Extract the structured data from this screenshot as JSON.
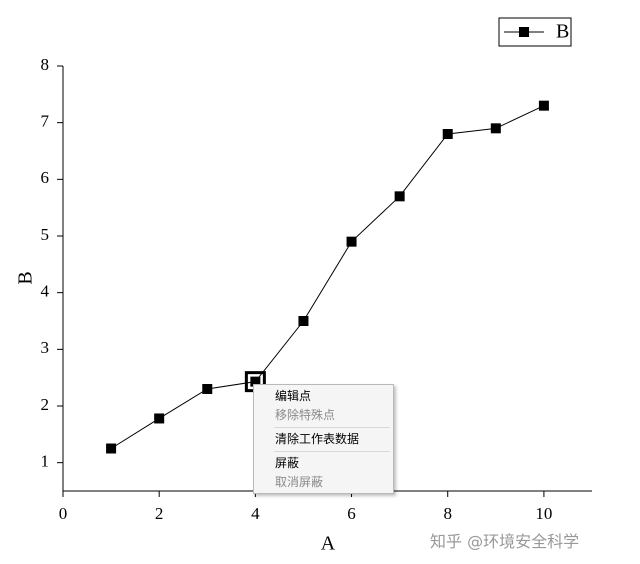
{
  "chart_data": {
    "type": "line",
    "xlabel": "A",
    "ylabel": "B",
    "x": [
      1,
      2,
      3,
      4,
      5,
      6,
      7,
      8,
      9,
      10
    ],
    "series": [
      {
        "name": "B",
        "color": "#000000",
        "values": [
          1.25,
          1.78,
          2.3,
          2.43,
          3.5,
          4.9,
          5.7,
          6.8,
          6.9,
          7.3
        ]
      }
    ],
    "xlim": [
      0,
      11
    ],
    "xticks": [
      0,
      2,
      4,
      6,
      8,
      10
    ],
    "ylim": [
      0.5,
      8
    ],
    "yticks": [
      1,
      2,
      3,
      4,
      5,
      6,
      7,
      8
    ],
    "legend": "top-right"
  },
  "context_menu": {
    "items": [
      {
        "label": "编辑点",
        "enabled": true
      },
      {
        "label": "移除特殊点",
        "enabled": false
      },
      {
        "label": "清除工作表数据",
        "enabled": true
      },
      {
        "label": "屏蔽",
        "enabled": true
      },
      {
        "label": "取消屏蔽",
        "enabled": false
      }
    ]
  },
  "watermark": "知乎 @环境安全科学"
}
